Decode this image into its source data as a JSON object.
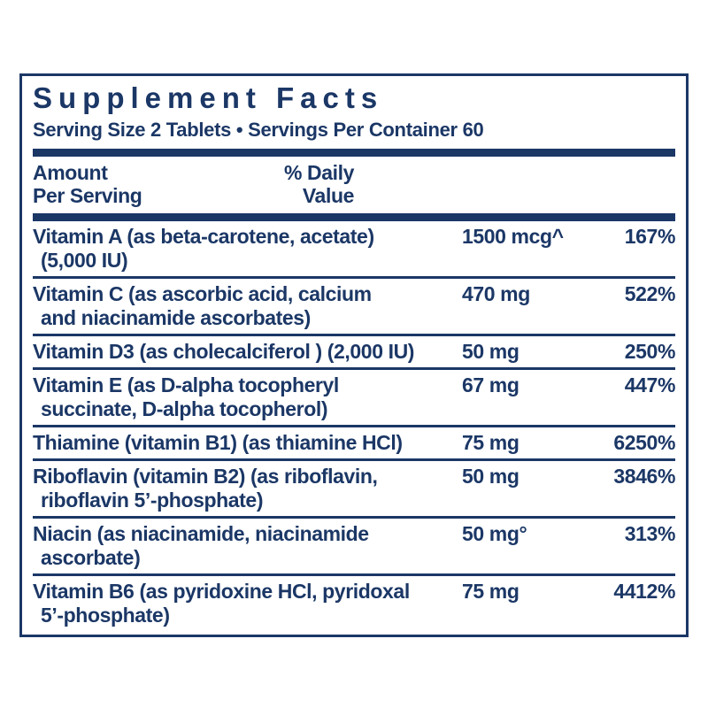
{
  "label": {
    "title": "Supplement Facts",
    "serving_line": "Serving Size 2 Tablets • Servings Per Container 60",
    "header": {
      "amount_line1": "Amount",
      "amount_line2": "Per Serving",
      "daily_line1": "% Daily",
      "daily_line2": "Value"
    },
    "colors": {
      "navy": "#1b3766",
      "background": "#ffffff"
    },
    "rows": [
      {
        "name_line1": "Vitamin A (as beta-carotene, acetate)",
        "name_line2": "(5,000 IU)",
        "amount": "1500 mcg^",
        "percent": "167%"
      },
      {
        "name_line1": "Vitamin C (as ascorbic acid, calcium",
        "name_line2": "and niacinamide ascorbates)",
        "amount": "470 mg",
        "percent": "522%"
      },
      {
        "name_line1": "Vitamin D3 (as cholecalciferol ) (2,000 IU)",
        "name_line2": "",
        "amount": "50 mg",
        "percent": "250%"
      },
      {
        "name_line1": "Vitamin E (as D-alpha tocopheryl",
        "name_line2": "succinate, D-alpha tocopherol)",
        "amount": "67 mg",
        "percent": "447%"
      },
      {
        "name_line1": "Thiamine (vitamin B1) (as thiamine HCl)",
        "name_line2": "",
        "amount": "75 mg",
        "percent": "6250%"
      },
      {
        "name_line1": "Riboflavin (vitamin B2) (as riboflavin,",
        "name_line2": "riboflavin 5’-phosphate)",
        "amount": "50 mg",
        "percent": "3846%"
      },
      {
        "name_line1": "Niacin (as niacinamide, niacinamide",
        "name_line2": "ascorbate)",
        "amount": "50 mg°",
        "percent": "313%"
      },
      {
        "name_line1": "Vitamin B6 (as pyridoxine HCl, pyridoxal",
        "name_line2": "5’-phosphate)",
        "amount": "75 mg",
        "percent": "4412%"
      }
    ]
  }
}
